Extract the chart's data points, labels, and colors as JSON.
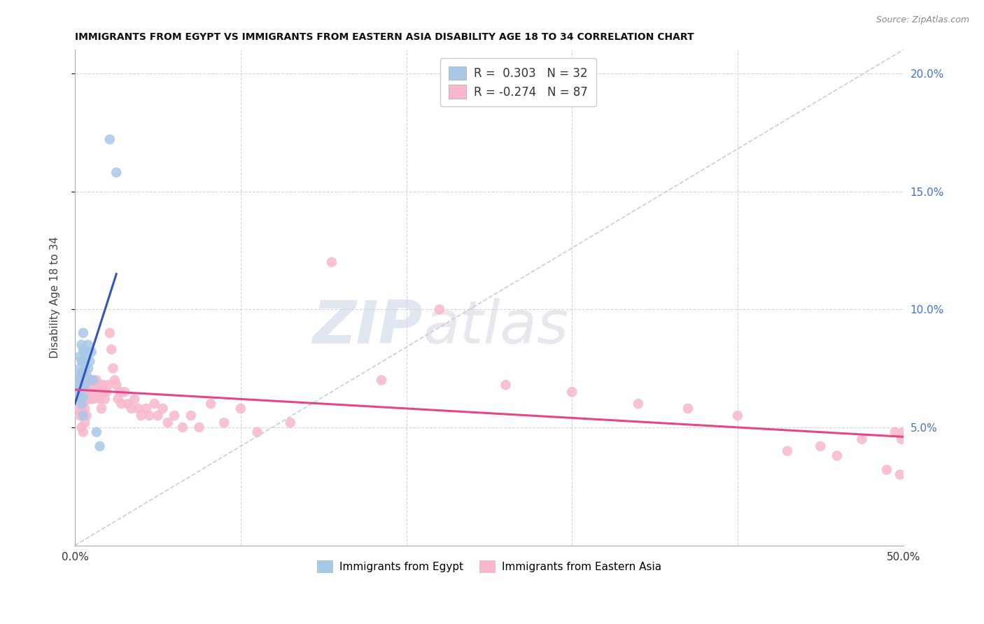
{
  "title": "IMMIGRANTS FROM EGYPT VS IMMIGRANTS FROM EASTERN ASIA DISABILITY AGE 18 TO 34 CORRELATION CHART",
  "source": "Source: ZipAtlas.com",
  "ylabel": "Disability Age 18 to 34",
  "xlim": [
    0.0,
    0.5
  ],
  "ylim": [
    0.0,
    0.21
  ],
  "background_color": "#ffffff",
  "grid_color": "#cccccc",
  "watermark_zip": "ZIP",
  "watermark_atlas": "atlas",
  "legend_egypt_r": "0.303",
  "legend_egypt_n": "32",
  "legend_eastern_r": "-0.274",
  "legend_eastern_n": "87",
  "egypt_color": "#a8c8e8",
  "egypt_line_color": "#3355bb",
  "eastern_color": "#f8b8cc",
  "eastern_line_color": "#e84488",
  "diagonal_color": "#bbccdd",
  "egypt_points_x": [
    0.002,
    0.002,
    0.003,
    0.003,
    0.003,
    0.003,
    0.003,
    0.004,
    0.004,
    0.004,
    0.004,
    0.005,
    0.005,
    0.005,
    0.005,
    0.005,
    0.005,
    0.005,
    0.006,
    0.006,
    0.006,
    0.007,
    0.007,
    0.008,
    0.008,
    0.009,
    0.01,
    0.011,
    0.013,
    0.015,
    0.021,
    0.025
  ],
  "egypt_points_y": [
    0.065,
    0.07,
    0.075,
    0.08,
    0.072,
    0.068,
    0.063,
    0.085,
    0.078,
    0.073,
    0.06,
    0.09,
    0.083,
    0.078,
    0.072,
    0.068,
    0.063,
    0.055,
    0.082,
    0.075,
    0.068,
    0.08,
    0.072,
    0.085,
    0.075,
    0.078,
    0.082,
    0.07,
    0.048,
    0.042,
    0.172,
    0.158
  ],
  "eastern_points_x": [
    0.002,
    0.002,
    0.003,
    0.003,
    0.003,
    0.004,
    0.004,
    0.004,
    0.004,
    0.005,
    0.005,
    0.005,
    0.005,
    0.005,
    0.006,
    0.006,
    0.006,
    0.006,
    0.007,
    0.007,
    0.007,
    0.008,
    0.008,
    0.009,
    0.009,
    0.01,
    0.01,
    0.011,
    0.011,
    0.012,
    0.013,
    0.013,
    0.014,
    0.015,
    0.015,
    0.016,
    0.016,
    0.017,
    0.018,
    0.019,
    0.02,
    0.021,
    0.022,
    0.023,
    0.024,
    0.025,
    0.026,
    0.027,
    0.028,
    0.03,
    0.032,
    0.034,
    0.036,
    0.038,
    0.04,
    0.043,
    0.045,
    0.048,
    0.05,
    0.053,
    0.056,
    0.06,
    0.065,
    0.07,
    0.075,
    0.082,
    0.09,
    0.1,
    0.11,
    0.13,
    0.155,
    0.185,
    0.22,
    0.26,
    0.3,
    0.34,
    0.37,
    0.4,
    0.43,
    0.45,
    0.46,
    0.475,
    0.49,
    0.495,
    0.498,
    0.499,
    0.5
  ],
  "eastern_points_y": [
    0.065,
    0.058,
    0.07,
    0.063,
    0.055,
    0.068,
    0.062,
    0.057,
    0.05,
    0.072,
    0.066,
    0.06,
    0.055,
    0.048,
    0.07,
    0.064,
    0.058,
    0.052,
    0.068,
    0.062,
    0.055,
    0.07,
    0.063,
    0.068,
    0.062,
    0.07,
    0.063,
    0.068,
    0.062,
    0.065,
    0.07,
    0.063,
    0.065,
    0.068,
    0.062,
    0.065,
    0.058,
    0.068,
    0.062,
    0.065,
    0.068,
    0.09,
    0.083,
    0.075,
    0.07,
    0.068,
    0.062,
    0.065,
    0.06,
    0.065,
    0.06,
    0.058,
    0.062,
    0.058,
    0.055,
    0.058,
    0.055,
    0.06,
    0.055,
    0.058,
    0.052,
    0.055,
    0.05,
    0.055,
    0.05,
    0.06,
    0.052,
    0.058,
    0.048,
    0.052,
    0.12,
    0.07,
    0.1,
    0.068,
    0.065,
    0.06,
    0.058,
    0.055,
    0.04,
    0.042,
    0.038,
    0.045,
    0.032,
    0.048,
    0.03,
    0.045,
    0.048
  ],
  "egypt_line_x": [
    0.0,
    0.025
  ],
  "egypt_line_y_start": 0.06,
  "egypt_line_y_end": 0.115,
  "eastern_line_x": [
    0.0,
    0.5
  ],
  "eastern_line_y_start": 0.066,
  "eastern_line_y_end": 0.046
}
